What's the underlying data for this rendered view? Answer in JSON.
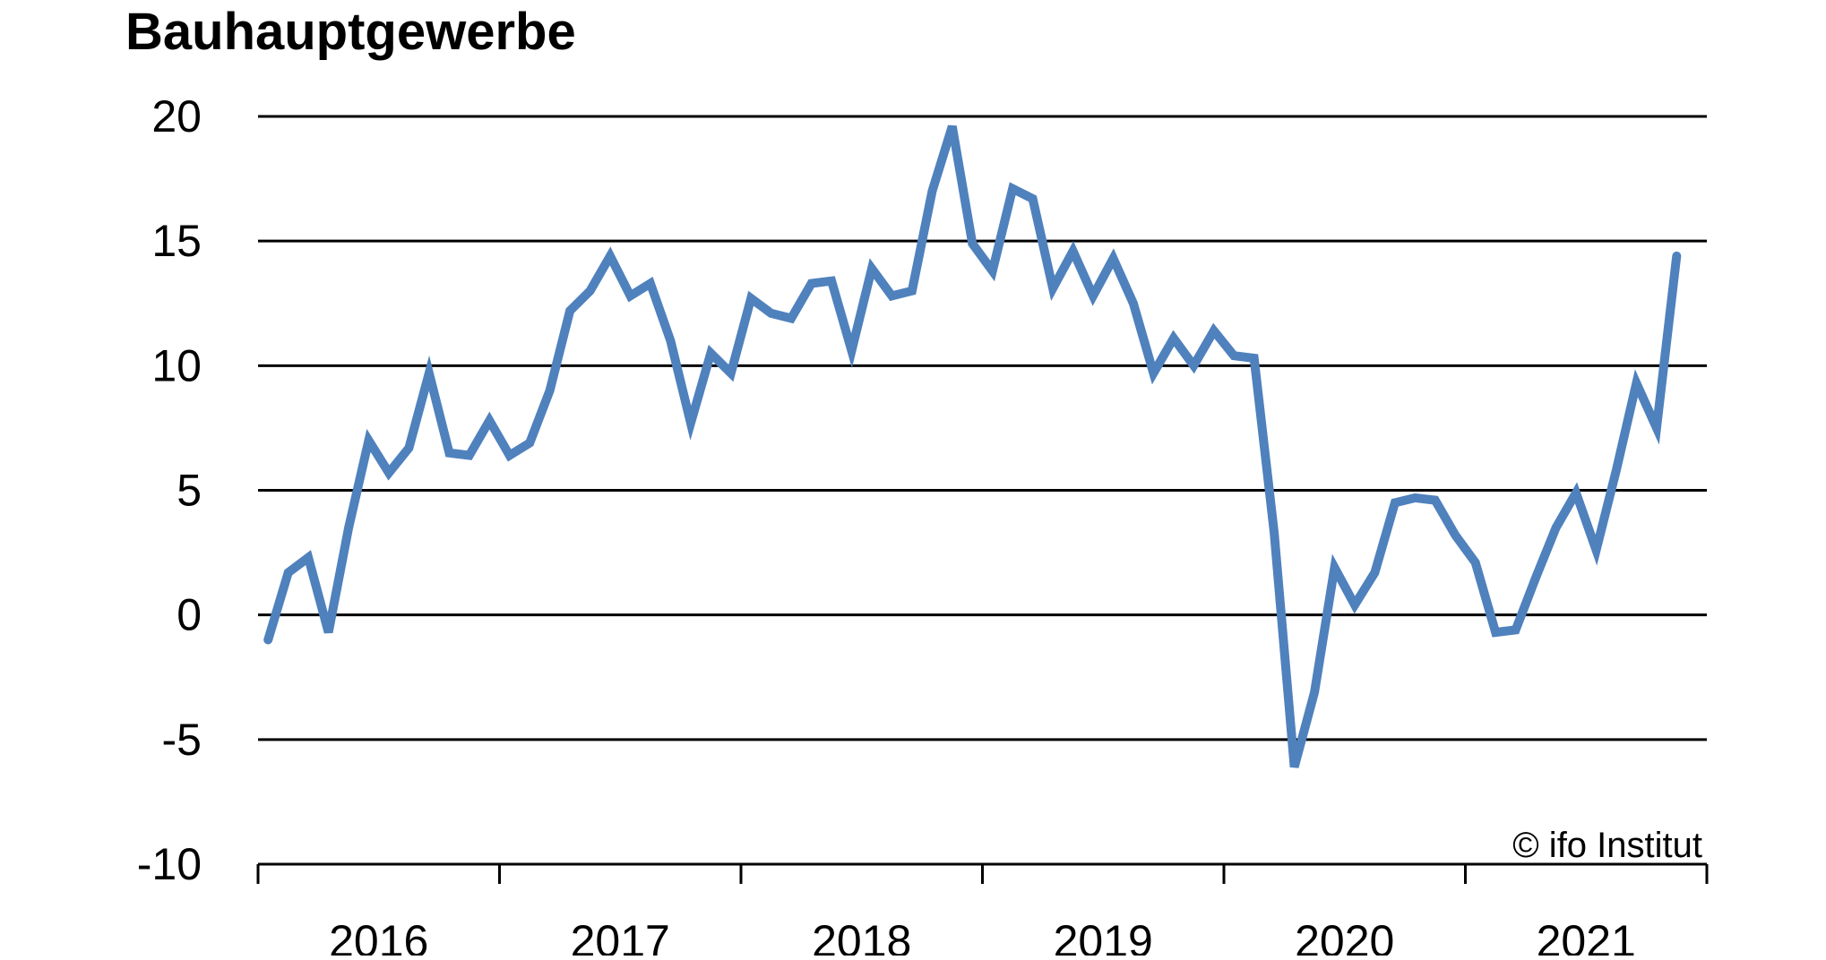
{
  "chart_data": {
    "type": "line",
    "title": "Bauhauptgewerbe",
    "xlabel": "",
    "ylabel": "",
    "ylim": [
      -10,
      20
    ],
    "y_ticks": [
      "20",
      "15",
      "10",
      "5",
      "0",
      "-5",
      "-10"
    ],
    "grid": "horizontal",
    "x_ticks": [
      "2016",
      "2017",
      "2018",
      "2019",
      "2020",
      "2021"
    ],
    "x_start": "2016-01",
    "color": "#4f81bd",
    "series": [
      {
        "name": "",
        "values": [
          -1.0,
          1.7,
          2.3,
          -0.7,
          3.5,
          7.0,
          5.7,
          6.7,
          9.7,
          6.5,
          6.4,
          7.8,
          6.4,
          6.9,
          9.0,
          12.2,
          13.0,
          14.4,
          12.8,
          13.3,
          11.0,
          7.7,
          10.5,
          9.7,
          12.7,
          12.1,
          11.9,
          13.3,
          13.4,
          10.6,
          13.9,
          12.8,
          13.0,
          17.0,
          19.6,
          14.9,
          13.8,
          17.1,
          16.7,
          13.1,
          14.6,
          12.8,
          14.3,
          12.5,
          9.7,
          11.1,
          10.0,
          11.4,
          10.4,
          10.3,
          3.3,
          -6.1,
          -3.1,
          1.9,
          0.4,
          1.7,
          4.5,
          4.7,
          4.6,
          3.2,
          2.1,
          -0.7,
          -0.6,
          1.5,
          3.5,
          4.9,
          2.6,
          5.8,
          9.3,
          7.5,
          14.4
        ]
      }
    ]
  },
  "credit": "© ifo Institut"
}
